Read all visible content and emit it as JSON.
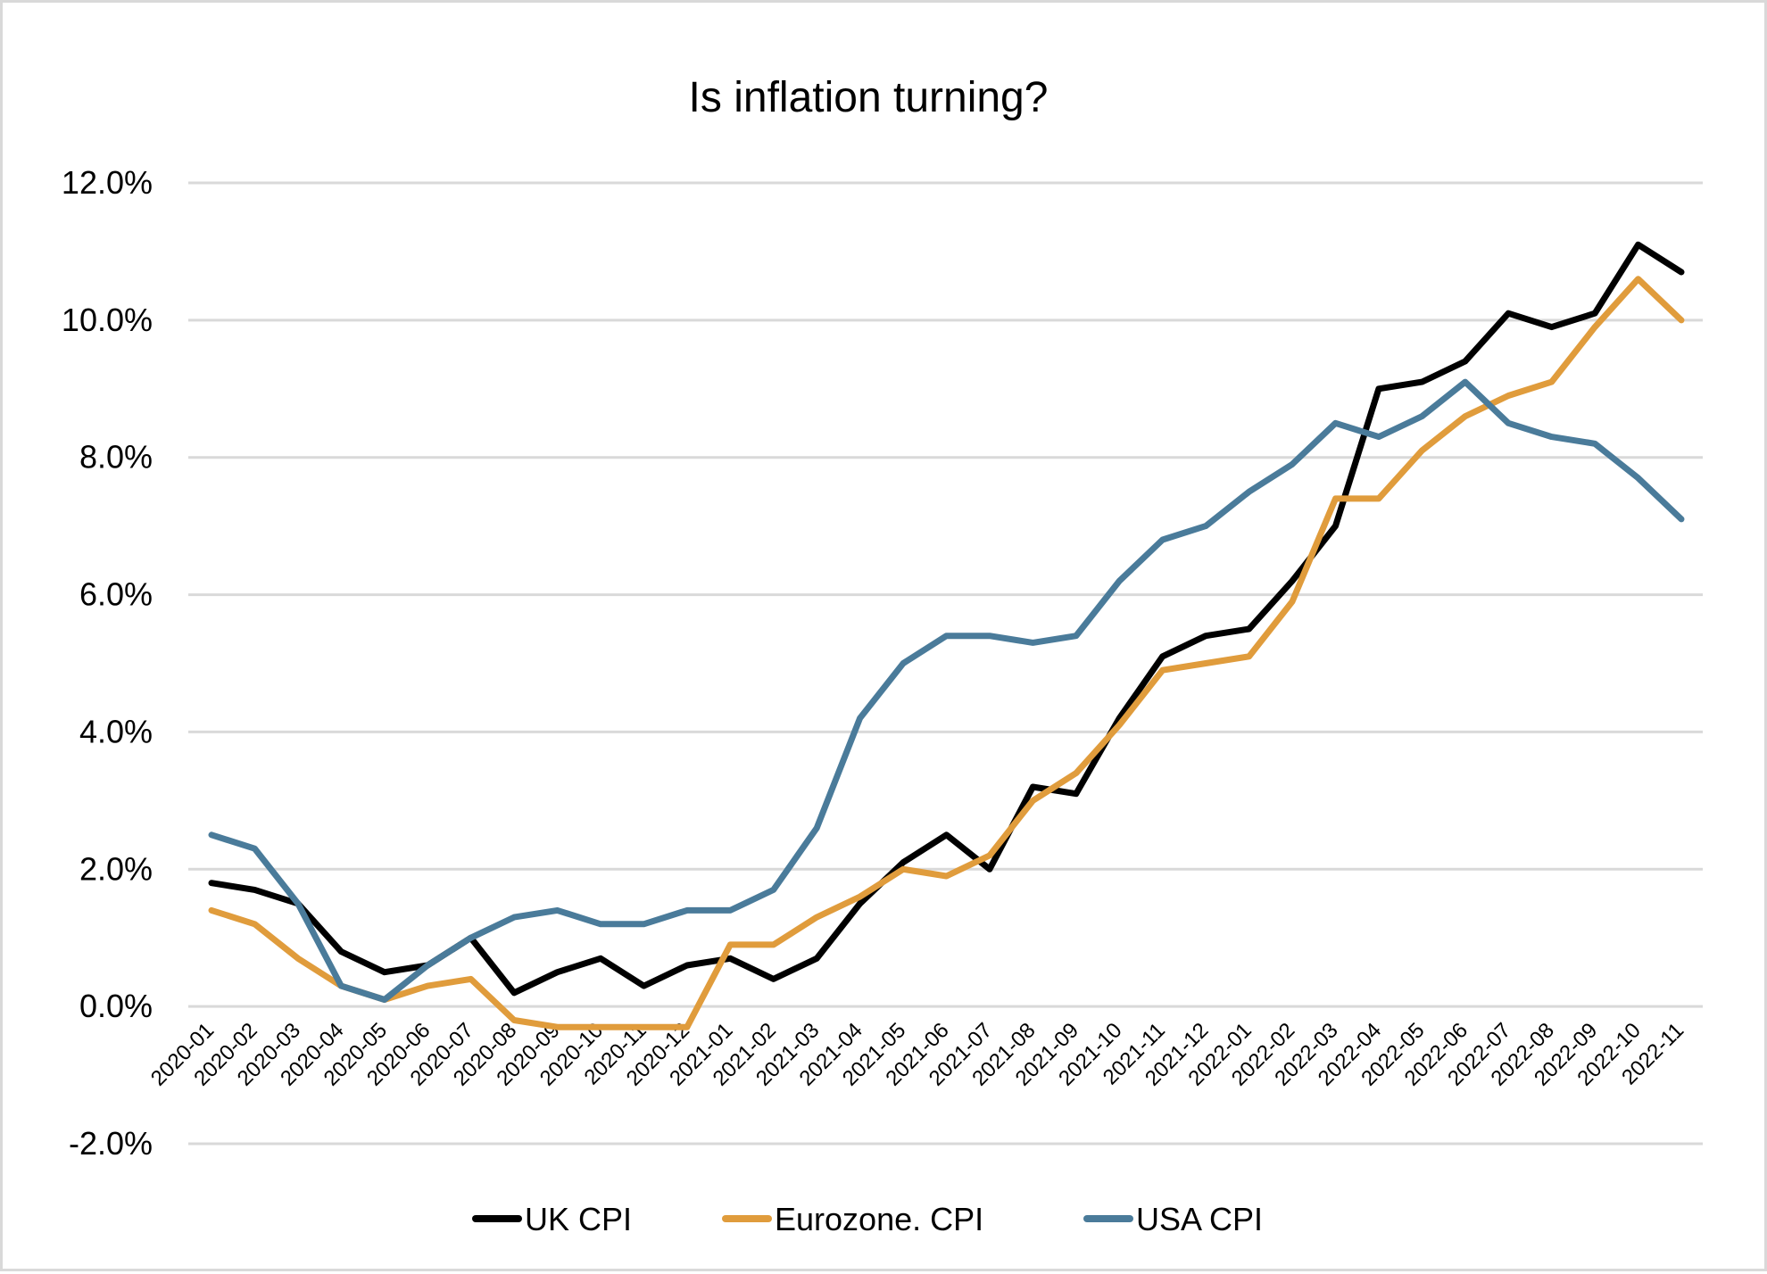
{
  "chart_data": {
    "type": "line",
    "title": "Is inflation turning?",
    "xlabel": "",
    "ylabel": "",
    "ylim": [
      -2.0,
      12.0
    ],
    "yticks": [
      -2.0,
      0.0,
      2.0,
      4.0,
      6.0,
      8.0,
      10.0,
      12.0
    ],
    "ytick_labels": [
      "-2.0%",
      "0.0%",
      "2.0%",
      "4.0%",
      "6.0%",
      "8.0%",
      "10.0%",
      "12.0%"
    ],
    "grid": true,
    "legend_position": "bottom",
    "categories": [
      "2020-01",
      "2020-02",
      "2020-03",
      "2020-04",
      "2020-05",
      "2020-06",
      "2020-07",
      "2020-08",
      "2020-09",
      "2020-10",
      "2020-11",
      "2020-12",
      "2021-01",
      "2021-02",
      "2021-03",
      "2021-04",
      "2021-05",
      "2021-06",
      "2021-07",
      "2021-08",
      "2021-09",
      "2021-10",
      "2021-11",
      "2021-12",
      "2022-01",
      "2022-02",
      "2022-03",
      "2022-04",
      "2022-05",
      "2022-06",
      "2022-07",
      "2022-08",
      "2022-09",
      "2022-10",
      "2022-11"
    ],
    "series": [
      {
        "name": "UK CPI",
        "color": "#000000",
        "values": [
          1.8,
          1.7,
          1.5,
          0.8,
          0.5,
          0.6,
          1.0,
          0.2,
          0.5,
          0.7,
          0.3,
          0.6,
          0.7,
          0.4,
          0.7,
          1.5,
          2.1,
          2.5,
          2.0,
          3.2,
          3.1,
          4.2,
          5.1,
          5.4,
          5.5,
          6.2,
          7.0,
          9.0,
          9.1,
          9.4,
          10.1,
          9.9,
          10.1,
          11.1,
          10.7
        ]
      },
      {
        "name": "Eurozone. CPI",
        "color": "#e09c3c",
        "values": [
          1.4,
          1.2,
          0.7,
          0.3,
          0.1,
          0.3,
          0.4,
          -0.2,
          -0.3,
          -0.3,
          -0.3,
          -0.3,
          0.9,
          0.9,
          1.3,
          1.6,
          2.0,
          1.9,
          2.2,
          3.0,
          3.4,
          4.1,
          4.9,
          5.0,
          5.1,
          5.9,
          7.4,
          7.4,
          8.1,
          8.6,
          8.9,
          9.1,
          9.9,
          10.6,
          10.0
        ]
      },
      {
        "name": "USA CPI",
        "color": "#4a7b9a",
        "values": [
          2.5,
          2.3,
          1.5,
          0.3,
          0.1,
          0.6,
          1.0,
          1.3,
          1.4,
          1.2,
          1.2,
          1.4,
          1.4,
          1.7,
          2.6,
          4.2,
          5.0,
          5.4,
          5.4,
          5.3,
          5.4,
          6.2,
          6.8,
          7.0,
          7.5,
          7.9,
          8.5,
          8.3,
          8.6,
          9.1,
          8.5,
          8.3,
          8.2,
          7.7,
          7.1
        ]
      }
    ]
  }
}
